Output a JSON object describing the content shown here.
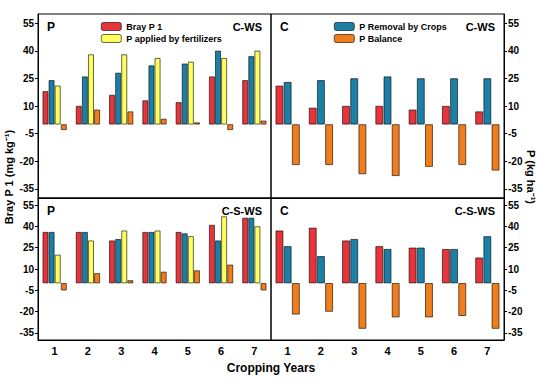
{
  "chart_data": [
    {
      "type": "bar",
      "title": "P",
      "annotations": [
        "C-WS"
      ],
      "ylabel": "Bray P 1 (mg kg⁻¹)",
      "categories": [
        "1",
        "2",
        "3",
        "4",
        "5",
        "6",
        "7"
      ],
      "series": [
        {
          "name": "Bray P 1",
          "color": "#e8333a",
          "values": [
            18,
            10,
            16,
            13,
            12,
            26,
            24
          ]
        },
        {
          "name": "P Removal by Crops",
          "color": "#1b7fa6",
          "values": [
            24,
            26,
            28,
            32,
            33,
            40,
            37
          ]
        },
        {
          "name": "P applied by fertilizers",
          "color": "#ffff5c",
          "values": [
            21,
            38,
            38,
            36,
            34,
            36,
            40
          ]
        },
        {
          "name": "P Balance",
          "color": "#f07c1c",
          "values": [
            -3,
            8,
            7,
            3,
            1,
            -3,
            2
          ]
        }
      ],
      "ylim": [
        -40,
        60
      ],
      "yticks": [
        -35,
        -20,
        -5,
        10,
        25,
        40,
        55
      ],
      "grid": false,
      "legend": "top",
      "tick_labels": "y"
    },
    {
      "type": "bar",
      "title": "C",
      "annotations": [
        "C-WS"
      ],
      "ylabel": "P (kg ha⁻¹)",
      "categories": [
        "1",
        "2",
        "3",
        "4",
        "5",
        "6",
        "7"
      ],
      "series": [
        {
          "name": "Bray P 1",
          "color": "#e8333a",
          "values": [
            21,
            9,
            10,
            10,
            8,
            10,
            7
          ]
        },
        {
          "name": "P Removal by Crops",
          "color": "#1b7fa6",
          "values": [
            23,
            24,
            25,
            26,
            25,
            25,
            25
          ]
        },
        {
          "name": "P Balance",
          "color": "#f07c1c",
          "values": [
            -22,
            -22,
            -27,
            -28,
            -23,
            -22,
            -25
          ]
        }
      ],
      "ylim": [
        -40,
        60
      ],
      "yticks": [
        -35,
        -20,
        -5,
        10,
        25,
        40,
        55
      ],
      "grid": false,
      "tick_labels": "y"
    },
    {
      "type": "bar",
      "title": "P",
      "annotations": [
        "C-S-WS"
      ],
      "xlabel": "Cropping Years",
      "categories": [
        "1",
        "2",
        "3",
        "4",
        "5",
        "6",
        "7"
      ],
      "series": [
        {
          "name": "Bray P 1",
          "color": "#e8333a",
          "values": [
            36,
            36,
            30,
            36,
            36,
            41,
            46
          ]
        },
        {
          "name": "P Removal by Crops",
          "color": "#1b7fa6",
          "values": [
            36,
            36,
            31,
            36,
            35,
            30,
            46
          ]
        },
        {
          "name": "P applied by fertilizers",
          "color": "#ffff5c",
          "values": [
            20,
            30,
            37,
            37,
            33,
            47,
            40
          ]
        },
        {
          "name": "P Balance",
          "color": "#f07c1c",
          "values": [
            -5,
            7,
            2,
            8,
            9,
            13,
            -5
          ]
        }
      ],
      "ylim": [
        -40,
        60
      ],
      "yticks": [
        -35,
        -20,
        -5,
        10,
        25,
        40,
        55
      ],
      "grid": false
    },
    {
      "type": "bar",
      "title": "C",
      "annotations": [
        "C-S-WS"
      ],
      "categories": [
        "1",
        "2",
        "3",
        "4",
        "5",
        "6",
        "7"
      ],
      "series": [
        {
          "name": "Bray P 1",
          "color": "#e8333a",
          "values": [
            37,
            39,
            30,
            26,
            25,
            24,
            18
          ]
        },
        {
          "name": "P Removal by Crops",
          "color": "#1b7fa6",
          "values": [
            26,
            19,
            31,
            24,
            25,
            24,
            33
          ]
        },
        {
          "name": "P Balance",
          "color": "#f07c1c",
          "values": [
            -22,
            -20,
            -32,
            -24,
            -24,
            -23,
            -32
          ]
        }
      ],
      "ylim": [
        -40,
        60
      ],
      "yticks": [
        -35,
        -20,
        -5,
        10,
        25,
        40,
        55
      ],
      "grid": false
    }
  ]
}
